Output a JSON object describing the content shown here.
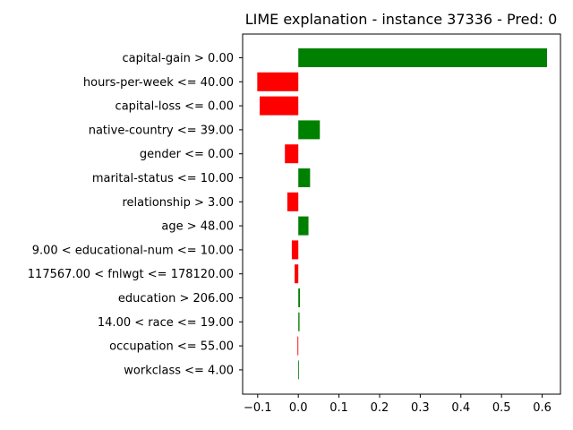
{
  "chart_data": {
    "type": "bar",
    "orientation": "horizontal",
    "title": "LIME explanation - instance 37336 - Pred: 0",
    "xlabel": "",
    "ylabel": "",
    "xlim": [
      -0.137,
      0.645
    ],
    "xticks": [
      -0.1,
      0.0,
      0.1,
      0.2,
      0.3,
      0.4,
      0.5,
      0.6
    ],
    "xtick_labels": [
      "−0.1",
      "0.0",
      "0.1",
      "0.2",
      "0.3",
      "0.4",
      "0.5",
      "0.6"
    ],
    "grid": false,
    "positive_color": "#008000",
    "negative_color": "#ff0000",
    "categories": [
      "capital-gain > 0.00",
      "hours-per-week <= 40.00",
      "capital-loss <= 0.00",
      "native-country <= 39.00",
      "gender <= 0.00",
      "marital-status <= 10.00",
      "relationship > 3.00",
      "age > 48.00",
      "9.00 < educational-num <= 10.00",
      "117567.00 < fnlwgt <= 178120.00",
      "education > 206.00",
      "14.00 < race <= 19.00",
      "occupation <= 55.00",
      "workclass <= 4.00"
    ],
    "values": [
      0.612,
      -0.101,
      -0.095,
      0.053,
      -0.033,
      0.029,
      -0.027,
      0.025,
      -0.016,
      -0.009,
      0.004,
      0.003,
      -0.002,
      0.001
    ]
  }
}
